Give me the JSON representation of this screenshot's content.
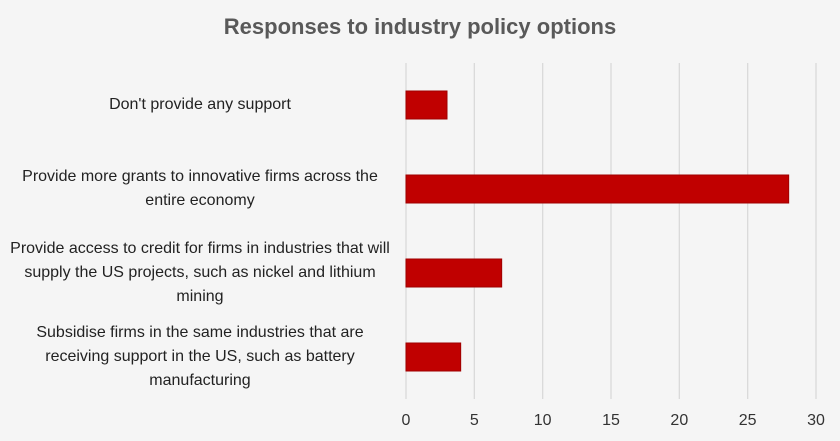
{
  "chart_data": {
    "type": "bar",
    "orientation": "horizontal",
    "title": "Responses  to industry policy options",
    "categories": [
      "Don't provide any support",
      "Provide more grants to innovative firms across the entire economy",
      "Provide access to credit for firms in industries that will supply the US projects, such as nickel and lithium mining",
      "Subsidise firms in the same industries that are receiving support in the US, such as battery manufacturing"
    ],
    "values": [
      3,
      28,
      7,
      4
    ],
    "xlim": [
      0,
      30
    ],
    "x_ticks": [
      0,
      5,
      10,
      15,
      20,
      25,
      30
    ],
    "grid": true,
    "legend": "none",
    "colors": {
      "bar_fill": "#c00000",
      "bar_edge": "#a00000",
      "grid": "#d9d9d9",
      "title": "#595959"
    }
  }
}
